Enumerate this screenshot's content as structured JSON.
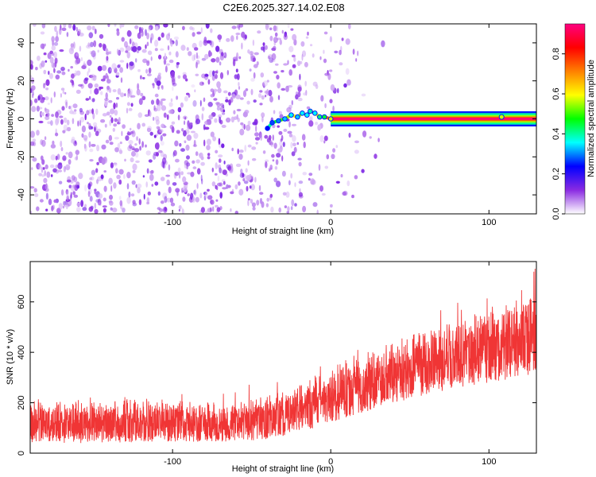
{
  "title": "C2E6.2025.327.14.02.E08",
  "chart_data": [
    {
      "type": "heatmap",
      "xlabel": "Height of straight line (km)",
      "ylabel": "Frequency (Hz)",
      "xlim": [
        -190,
        130
      ],
      "ylim": [
        -50,
        50
      ],
      "x_ticks": [
        -100,
        0,
        100
      ],
      "x_tick_labels": [
        "-100",
        "0",
        "100"
      ],
      "y_ticks": [
        -40,
        -20,
        0,
        20,
        40
      ],
      "y_tick_labels": [
        "-40",
        "-20",
        "0",
        "20",
        "40"
      ],
      "grid": false,
      "colorbar": {
        "label": "Normalized spectral amplitude",
        "range": [
          0,
          0.95
        ],
        "ticks": [
          0.0,
          0.2,
          0.4,
          0.6,
          0.8
        ],
        "tick_labels": [
          "0.0",
          "0.2",
          "0.4",
          "0.6",
          "0.8"
        ],
        "colors": [
          "#ffffff",
          "#8a2be2",
          "#0000ff",
          "#00ffff",
          "#00ff00",
          "#ffff00",
          "#ff8000",
          "#ff0000",
          "#ff0080"
        ]
      },
      "noise_region": {
        "x_range": [
          -190,
          0
        ],
        "freq_range": [
          -50,
          50
        ],
        "amplitude": 0.1
      },
      "signal_track": {
        "x": [
          -40,
          -37,
          -33,
          -29,
          -25,
          -21,
          -18,
          -15,
          -13,
          -10,
          -7,
          -4,
          0,
          10,
          25,
          50,
          75,
          100,
          108,
          115,
          130
        ],
        "frequency": [
          -5,
          -2,
          -1,
          0,
          2,
          1,
          3,
          2,
          4,
          3,
          1,
          1,
          0,
          0,
          0,
          0,
          0,
          0,
          1,
          0,
          0
        ],
        "amplitude": [
          0.4,
          0.45,
          0.5,
          0.55,
          0.6,
          0.55,
          0.6,
          0.6,
          0.65,
          0.6,
          0.7,
          0.75,
          0.95,
          0.95,
          0.95,
          0.95,
          0.95,
          0.95,
          0.95,
          0.95,
          0.95
        ]
      }
    },
    {
      "type": "line",
      "series": [
        {
          "name": "SNR",
          "color": "#f03535"
        }
      ],
      "xlabel": "Height of straight line (km)",
      "ylabel": "SNR (10 * v/v)",
      "xlim": [
        -190,
        130
      ],
      "ylim": [
        0,
        760
      ],
      "x_ticks": [
        -100,
        0,
        100
      ],
      "x_tick_labels": [
        "-100",
        "0",
        "100"
      ],
      "y_ticks": [
        0,
        200,
        400,
        600
      ],
      "y_tick_labels": [
        "0",
        "200",
        "400",
        "600"
      ],
      "grid": false,
      "envelope": {
        "x": [
          -190,
          -150,
          -100,
          -60,
          -40,
          -20,
          0,
          20,
          40,
          60,
          80,
          100,
          120,
          130
        ],
        "low": [
          40,
          40,
          45,
          45,
          55,
          80,
          120,
          160,
          200,
          230,
          260,
          280,
          300,
          320
        ],
        "high": [
          190,
          190,
          195,
          190,
          210,
          260,
          310,
          370,
          420,
          470,
          510,
          560,
          600,
          640
        ]
      }
    }
  ]
}
